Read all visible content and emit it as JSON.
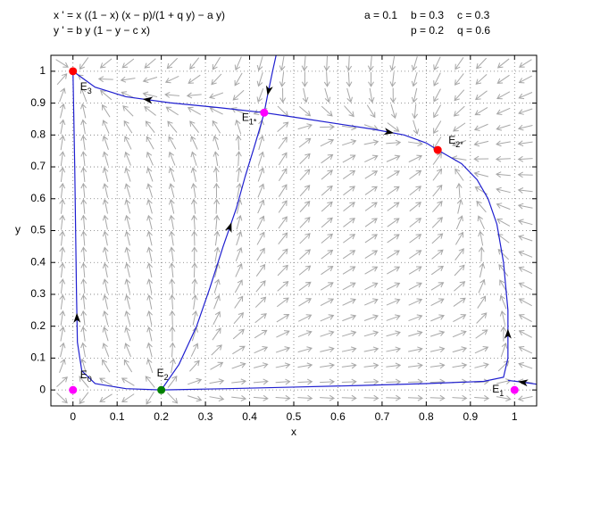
{
  "chart_data": {
    "type": "phase-portrait",
    "equations": [
      "x ' = x ((1 − x) (x − p)/(1 + q y) − a y)",
      "y ' = b y (1 − y − c x)"
    ],
    "parameters": [
      {
        "label": "a = 0.1",
        "value": 0.1
      },
      {
        "label": "b = 0.3",
        "value": 0.3
      },
      {
        "label": "c = 0.3",
        "value": 0.3
      },
      {
        "label": "p = 0.2",
        "value": 0.2
      },
      {
        "label": "q = 0.6",
        "value": 0.6
      }
    ],
    "xlabel": "x",
    "ylabel": "y",
    "xlim": [
      -0.05,
      1.05
    ],
    "ylim": [
      -0.05,
      1.05
    ],
    "xticks": [
      0,
      0.1,
      0.2,
      0.3,
      0.4,
      0.5,
      0.6,
      0.7,
      0.8,
      0.9,
      1
    ],
    "yticks": [
      0,
      0.1,
      0.2,
      0.3,
      0.4,
      0.5,
      0.6,
      0.7,
      0.8,
      0.9,
      1
    ],
    "grid": true,
    "field_color": "#a8a8a8",
    "trajectory_color": "#1f1fd0",
    "trajectories": [
      {
        "x": [
          0.433,
          0.33,
          0.22,
          0.12,
          0.05,
          0
        ],
        "y": [
          0.87,
          0.886,
          0.901,
          0.92,
          0.95,
          1
        ]
      },
      {
        "x": [
          0.433,
          0.52,
          0.6,
          0.68,
          0.75,
          0.8,
          0.826
        ],
        "y": [
          0.87,
          0.852,
          0.835,
          0.818,
          0.8,
          0.775,
          0.753
        ]
      },
      {
        "x": [
          0.46,
          0.452,
          0.446,
          0.44,
          0.433
        ],
        "y": [
          1.05,
          1.0,
          0.96,
          0.92,
          0.87
        ]
      },
      {
        "x": [
          0.2,
          0.24,
          0.28,
          0.31,
          0.34,
          0.37,
          0.39,
          0.41,
          0.425,
          0.433
        ],
        "y": [
          0,
          0.08,
          0.2,
          0.32,
          0.45,
          0.57,
          0.67,
          0.76,
          0.83,
          0.87
        ]
      },
      {
        "x": [
          0.2,
          0.12,
          0.05,
          0.02,
          0.01,
          0.008,
          0.006,
          0.004,
          0.002,
          0
        ],
        "y": [
          0,
          0.004,
          0.02,
          0.06,
          0.15,
          0.3,
          0.5,
          0.7,
          0.85,
          1
        ]
      },
      {
        "x": [
          0.2,
          0.35,
          0.5,
          0.65,
          0.8,
          0.93,
          0.975,
          0.985,
          0.985,
          0.975,
          0.96,
          0.94,
          0.915,
          0.88,
          0.826
        ],
        "y": [
          0,
          0.004,
          0.009,
          0.014,
          0.02,
          0.027,
          0.04,
          0.1,
          0.25,
          0.4,
          0.52,
          0.6,
          0.66,
          0.71,
          0.753
        ]
      },
      {
        "x": [
          1.05,
          1.03,
          1.01,
          0.985
        ],
        "y": [
          0.018,
          0.022,
          0.026,
          0.03
        ]
      }
    ],
    "equilibria": [
      {
        "label": "E",
        "subscript": "0",
        "x": 0,
        "y": 0,
        "color": "#ff00ff"
      },
      {
        "label": "E",
        "subscript": "1",
        "x": 1,
        "y": 0,
        "color": "#ff00ff"
      },
      {
        "label": "E",
        "subscript": "2",
        "x": 0.2,
        "y": 0,
        "color": "#008000"
      },
      {
        "label": "E",
        "subscript": "3",
        "x": 0,
        "y": 1,
        "color": "#ff0000"
      },
      {
        "label": "E",
        "subscript": "1*",
        "x": 0.433,
        "y": 0.87,
        "color": "#ff00ff"
      },
      {
        "label": "E",
        "subscript": "2*",
        "x": 0.826,
        "y": 0.753,
        "color": "#ff0000"
      }
    ]
  }
}
